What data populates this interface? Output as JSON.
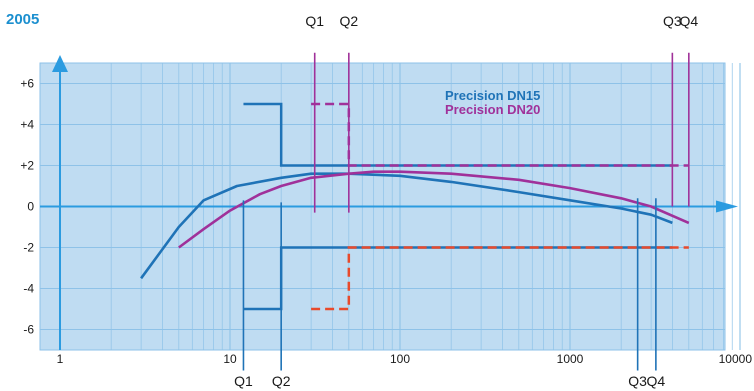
{
  "chart_data": {
    "type": "line",
    "title": "2005",
    "title_color": "#1b8fcf",
    "x_scale": "log",
    "xlim": [
      1,
      10000
    ],
    "ylim": [
      -7,
      7
    ],
    "x_ticks": [
      1,
      10,
      100,
      1000,
      10000
    ],
    "x_tick_labels": [
      "1",
      "10",
      "100",
      "1000",
      "10000"
    ],
    "y_ticks": [
      -6,
      -4,
      -2,
      0,
      2,
      4,
      6
    ],
    "y_tick_labels": [
      "-6",
      "-4",
      "-2",
      "0",
      "+2",
      "+4",
      "+6"
    ],
    "grid": true,
    "background_color": "#bfdcf2",
    "grid_color": "#8ec2e8",
    "axis_color": "#2b9be0",
    "legend_position": "top-center",
    "series": [
      {
        "name": "Precision DN15",
        "color": "#1f73b7",
        "x": [
          3,
          5,
          7,
          11,
          20,
          30,
          50,
          100,
          200,
          500,
          1000,
          2000,
          3000,
          4000
        ],
        "y": [
          -3.5,
          -1.0,
          0.3,
          1.0,
          1.4,
          1.6,
          1.6,
          1.5,
          1.2,
          0.7,
          0.3,
          -0.1,
          -0.4,
          -0.8
        ]
      },
      {
        "name": "Precision DN20",
        "color": "#a0319a",
        "x": [
          5,
          7,
          10,
          15,
          20,
          30,
          50,
          70,
          100,
          200,
          500,
          1000,
          2000,
          3000,
          5000
        ],
        "y": [
          -2.0,
          -1.1,
          -0.2,
          0.6,
          1.0,
          1.4,
          1.6,
          1.7,
          1.7,
          1.6,
          1.3,
          0.9,
          0.4,
          0.0,
          -0.8
        ]
      }
    ],
    "error_limits": [
      {
        "label": "DN15",
        "color": "#1f73b7",
        "dashed": false,
        "upper": [
          [
            12,
            5
          ],
          [
            20,
            5
          ],
          [
            20,
            2
          ],
          [
            4000,
            2
          ]
        ],
        "lower": [
          [
            12,
            -5
          ],
          [
            20,
            -5
          ],
          [
            20,
            -2
          ],
          [
            4000,
            -2
          ]
        ]
      },
      {
        "label": "DN20",
        "color_upper": "#a0319a",
        "color_lower": "#e84a2c",
        "dashed": true,
        "upper": [
          [
            30,
            5
          ],
          [
            50,
            5
          ],
          [
            50,
            2
          ],
          [
            5000,
            2
          ]
        ],
        "lower": [
          [
            30,
            -5
          ],
          [
            50,
            -5
          ],
          [
            50,
            -2
          ],
          [
            5000,
            -2
          ]
        ]
      }
    ],
    "flow_markers": [
      {
        "label": "Q1",
        "x": 12,
        "series": "Precision DN15",
        "color": "#1f73b7",
        "y_from": 0.3,
        "y_to": -8.0,
        "label_pos": "bottom"
      },
      {
        "label": "Q2",
        "x": 20,
        "series": "Precision DN15",
        "color": "#1f73b7",
        "y_from": 0.2,
        "y_to": -8.0,
        "label_pos": "bottom"
      },
      {
        "label": "Q3",
        "x": 2500,
        "series": "Precision DN15",
        "color": "#1f73b7",
        "y_from": 0.4,
        "y_to": -8.0,
        "label_pos": "bottom"
      },
      {
        "label": "Q4",
        "x": 3200,
        "series": "Precision DN15",
        "color": "#1f73b7",
        "y_from": 0.4,
        "y_to": -8.0,
        "label_pos": "bottom"
      },
      {
        "label": "Q1",
        "x": 31.5,
        "series": "Precision DN20",
        "color": "#a0319a",
        "y_from": 7.5,
        "y_to": -0.3,
        "label_pos": "top"
      },
      {
        "label": "Q2",
        "x": 50,
        "series": "Precision DN20",
        "color": "#a0319a",
        "y_from": 7.5,
        "y_to": -0.3,
        "label_pos": "top"
      },
      {
        "label": "Q3",
        "x": 4000,
        "series": "Precision DN20",
        "color": "#a0319a",
        "y_from": 7.5,
        "y_to": 0.0,
        "label_pos": "top"
      },
      {
        "label": "Q4",
        "x": 5000,
        "series": "Precision DN20",
        "color": "#a0319a",
        "y_from": 7.5,
        "y_to": 0.0,
        "label_pos": "top"
      }
    ]
  }
}
